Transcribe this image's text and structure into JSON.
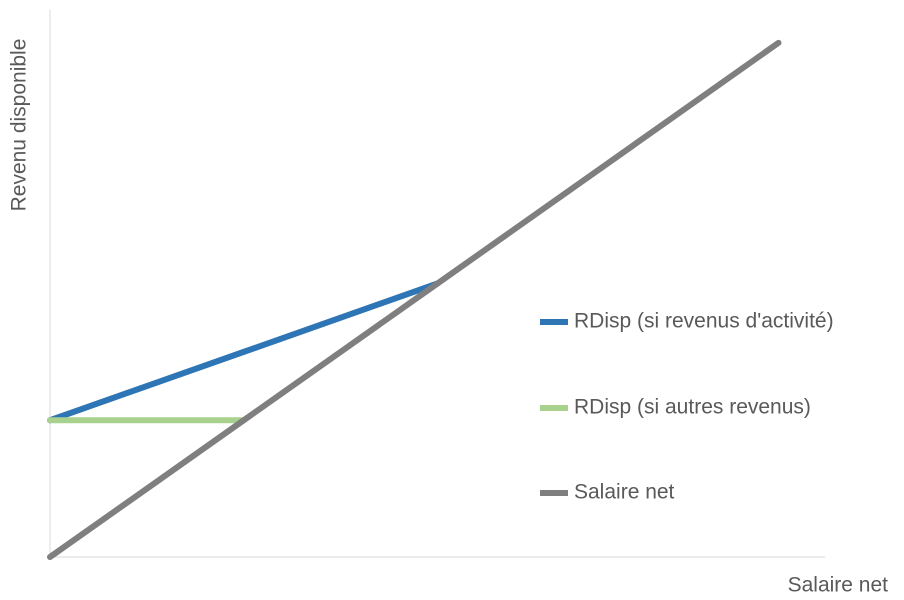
{
  "chart_data": {
    "type": "line",
    "x_label": "Salaire net",
    "y_label": "Revenu disponible",
    "x": [
      0,
      25,
      50,
      94
    ],
    "series": [
      {
        "name": "RDisp (si revenus d'activité)",
        "color": "#2e75b6",
        "values": [
          25,
          37.5,
          50,
          null
        ]
      },
      {
        "name": "RDisp (si autres revenus)",
        "color": "#a9d18e",
        "values": [
          25,
          25,
          null,
          null
        ]
      },
      {
        "name": "Salaire net",
        "color": "#7f7f7f",
        "values": [
          0,
          25,
          50,
          94
        ]
      }
    ],
    "xlim": [
      0,
      100
    ],
    "ylim": [
      0,
      100
    ],
    "grid": false,
    "legend": "right"
  }
}
